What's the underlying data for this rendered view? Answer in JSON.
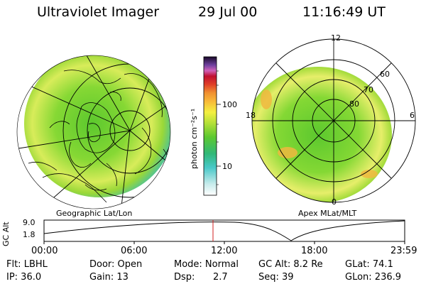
{
  "header": {
    "instrument": "Ultraviolet Imager",
    "date": "29 Jul 00",
    "time": "11:16:49 UT"
  },
  "left_panel": {
    "label": "Geographic Lat/Lon"
  },
  "right_panel": {
    "label": "Apex MLat/MLT",
    "mlt_labels": [
      "12",
      "18",
      "6",
      "0"
    ],
    "lat_labels": [
      "60",
      "70",
      "80"
    ]
  },
  "colorbar": {
    "unit_label": "photon cm⁻²s⁻¹",
    "ticks": [
      "100",
      "10"
    ]
  },
  "altitude_plot": {
    "axis_label": "GC Alt",
    "y_ticks": [
      "9.0",
      "1.8"
    ],
    "x_ticks": [
      "00:00",
      "06:00",
      "12:00",
      "18:00",
      "23:59"
    ]
  },
  "status": {
    "filter": "Flt: LBHL",
    "ip": "IP: 36.0",
    "door": "Door: Open",
    "gain": "Gain: 13",
    "mode": "Mode: Normal",
    "dsp_label": "Dsp:",
    "dsp_value": "2.7",
    "gc_alt": "GC Alt: 8.2 Re",
    "seq": "Seq: 39",
    "glat": "GLat:  74.1",
    "glon": "GLon: 236.9"
  }
}
